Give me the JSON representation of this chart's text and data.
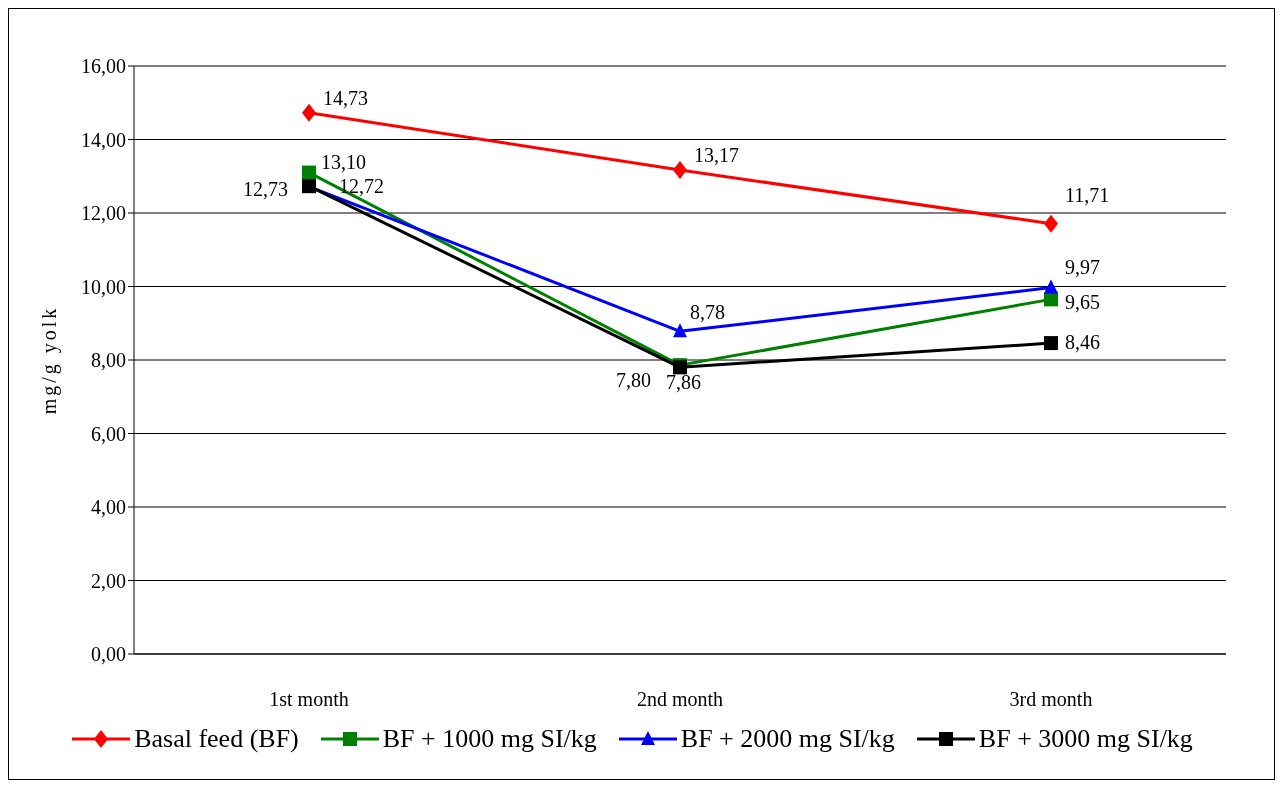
{
  "chart_data": {
    "type": "line",
    "ylabel": "mg/g yolk",
    "categories": [
      "1st month",
      "2nd month",
      "3rd month"
    ],
    "ylim": [
      0,
      16
    ],
    "yticks": [
      {
        "value": 0,
        "label": "0,00"
      },
      {
        "value": 2,
        "label": "2,00"
      },
      {
        "value": 4,
        "label": "4,00"
      },
      {
        "value": 6,
        "label": "6,00"
      },
      {
        "value": 8,
        "label": "8,00"
      },
      {
        "value": 10,
        "label": "10,00"
      },
      {
        "value": 12,
        "label": "12,00"
      },
      {
        "value": 14,
        "label": "14,00"
      },
      {
        "value": 16,
        "label": "16,00"
      }
    ],
    "grid": "y",
    "legend": "bottom",
    "line_style": "solid",
    "series": [
      {
        "name": "Basal feed  (BF)",
        "color": "#ff0000",
        "marker": "diamond",
        "values": [
          14.73,
          13.17,
          11.71
        ],
        "value_labels": [
          "14,73",
          "13,17",
          "11,71"
        ]
      },
      {
        "name": "BF + 1000 mg SI/kg",
        "color": "#008000",
        "marker": "square",
        "values": [
          13.1,
          7.86,
          9.65
        ],
        "value_labels": [
          "13,10",
          "7,86",
          "9,65"
        ]
      },
      {
        "name": "BF + 2000 mg SI/kg",
        "color": "#0000ff",
        "marker": "triangle",
        "values": [
          12.72,
          8.78,
          9.97
        ],
        "value_labels": [
          "12,72",
          "8,78",
          "9,97"
        ]
      },
      {
        "name": "BF + 3000 mg SI/kg",
        "color": "#000000",
        "marker": "square",
        "values": [
          12.73,
          7.8,
          8.46
        ],
        "value_labels": [
          "12,73",
          "7,80",
          "8,46"
        ]
      }
    ]
  }
}
